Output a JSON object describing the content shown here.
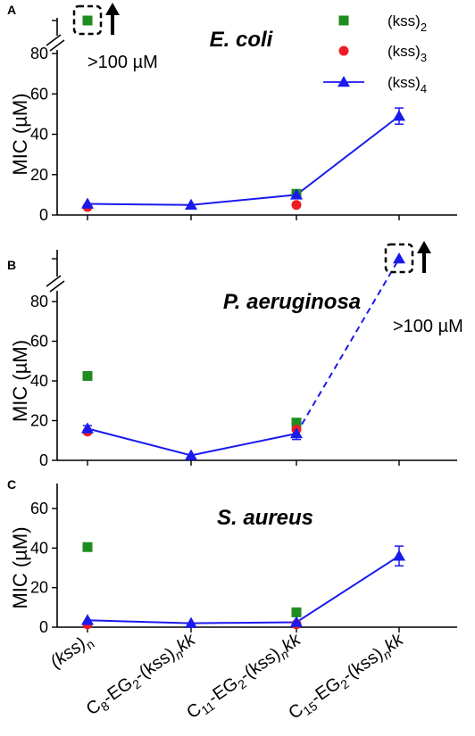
{
  "colors": {
    "kss2": "#1e8c1e",
    "kss3": "#ee1c24",
    "kss4": "#1a1aee",
    "axis": "#000000"
  },
  "legend": {
    "items": [
      {
        "key": "kss2",
        "marker": "square",
        "base": "(kss)",
        "sub": "2"
      },
      {
        "key": "kss3",
        "marker": "circle",
        "base": "(kss)",
        "sub": "3"
      },
      {
        "key": "kss4",
        "marker": "triangle-line",
        "base": "(kss)",
        "sub": "4"
      }
    ]
  },
  "x_categories": [
    {
      "parts": [
        [
          "(kss)",
          "n",
          "it"
        ],
        [
          "",
          "n",
          "sub"
        ]
      ]
    },
    {
      "parts": [
        [
          "C",
          "",
          "n"
        ],
        [
          "8",
          "",
          "sub"
        ],
        [
          "-EG",
          "",
          "n"
        ],
        [
          "2",
          "",
          "sub"
        ],
        [
          "-(kss)",
          "",
          "n"
        ],
        [
          "n",
          "",
          "subit"
        ],
        [
          "kk",
          "",
          "it"
        ]
      ]
    },
    {
      "parts": [
        [
          "C",
          "",
          "n"
        ],
        [
          "11",
          "",
          "sub"
        ],
        [
          "-EG",
          "",
          "n"
        ],
        [
          "2",
          "",
          "sub"
        ],
        [
          "-(kss)",
          "",
          "n"
        ],
        [
          "n",
          "",
          "subit"
        ],
        [
          "kk",
          "",
          "it"
        ]
      ]
    },
    {
      "parts": [
        [
          "C",
          "",
          "n"
        ],
        [
          "15",
          "",
          "sub"
        ],
        [
          "-EG",
          "",
          "n"
        ],
        [
          "2",
          "",
          "sub"
        ],
        [
          "-(kss)",
          "",
          "n"
        ],
        [
          "n",
          "",
          "subit"
        ],
        [
          "kk",
          "",
          "it"
        ]
      ]
    }
  ],
  "chart_data": [
    {
      "type": "scatter",
      "panel_letter": "A",
      "title": "E. coli",
      "ylabel": "MIC (µM)",
      "ylim": [
        0,
        85
      ],
      "yticks": [
        0,
        20,
        40,
        60,
        80
      ],
      "axis_break": true,
      "annotation": ">100 µM",
      "annotation_placement": "left",
      "legend": true,
      "x": [
        1,
        2,
        3,
        4
      ],
      "series": [
        {
          "name": "(kss)2",
          "key": "kss2",
          "marker": "square",
          "points": [
            {
              "x": 1,
              "y": ">100"
            },
            {
              "x": 3,
              "y": 10.5
            }
          ]
        },
        {
          "name": "(kss)3",
          "key": "kss3",
          "marker": "circle",
          "points": [
            {
              "x": 1,
              "y": 4
            },
            {
              "x": 3,
              "y": 5
            }
          ]
        },
        {
          "name": "(kss)4",
          "key": "kss4",
          "marker": "triangle",
          "line": "solid",
          "points": [
            {
              "x": 1,
              "y": 5.5
            },
            {
              "x": 2,
              "y": 5
            },
            {
              "x": 3,
              "y": 10
            },
            {
              "x": 4,
              "y": 49,
              "err": 4
            }
          ]
        }
      ]
    },
    {
      "type": "scatter",
      "panel_letter": "B",
      "title": "P. aeruginosa",
      "ylabel": "MIC (µM)",
      "ylim": [
        0,
        85
      ],
      "yticks": [
        0,
        20,
        40,
        60,
        80
      ],
      "axis_break": true,
      "annotation": ">100 µM",
      "annotation_placement": "right",
      "legend": false,
      "x": [
        1,
        2,
        3,
        4
      ],
      "series": [
        {
          "name": "(kss)2",
          "key": "kss2",
          "marker": "square",
          "points": [
            {
              "x": 1,
              "y": 42.5
            },
            {
              "x": 3,
              "y": 19
            }
          ]
        },
        {
          "name": "(kss)3",
          "key": "kss3",
          "marker": "circle",
          "points": [
            {
              "x": 1,
              "y": 14.5
            },
            {
              "x": 3,
              "y": 15.5
            }
          ]
        },
        {
          "name": "(kss)4",
          "key": "kss4",
          "marker": "triangle",
          "line": "solid",
          "points": [
            {
              "x": 1,
              "y": 16,
              "err": 1.5
            },
            {
              "x": 2,
              "y": 2.5
            },
            {
              "x": 3,
              "y": 13.5,
              "err": 3
            }
          ]
        },
        {
          "name": "(kss)4",
          "key": "kss4",
          "marker": "triangle",
          "line": "dashed",
          "points": [
            {
              "x": 3,
              "y": 13.5
            },
            {
              "x": 4,
              "y": ">100"
            }
          ]
        }
      ]
    },
    {
      "type": "scatter",
      "panel_letter": "C",
      "title": "S. aureus",
      "ylabel": "MIC (µM)",
      "ylim": [
        0,
        65
      ],
      "yticks": [
        0,
        20,
        40,
        60
      ],
      "axis_break": false,
      "annotation": "",
      "legend": false,
      "x": [
        1,
        2,
        3,
        4
      ],
      "series": [
        {
          "name": "(kss)2",
          "key": "kss2",
          "marker": "square",
          "points": [
            {
              "x": 1,
              "y": 40.5
            },
            {
              "x": 3,
              "y": 7.5
            }
          ]
        },
        {
          "name": "(kss)3",
          "key": "kss3",
          "marker": "circle",
          "points": [
            {
              "x": 1,
              "y": 1.5
            },
            {
              "x": 3,
              "y": 1.5
            }
          ]
        },
        {
          "name": "(kss)4",
          "key": "kss4",
          "marker": "triangle",
          "line": "solid",
          "points": [
            {
              "x": 1,
              "y": 3.5
            },
            {
              "x": 2,
              "y": 2
            },
            {
              "x": 3,
              "y": 2.5
            },
            {
              "x": 4,
              "y": 36,
              "err": 5
            }
          ]
        }
      ]
    }
  ]
}
